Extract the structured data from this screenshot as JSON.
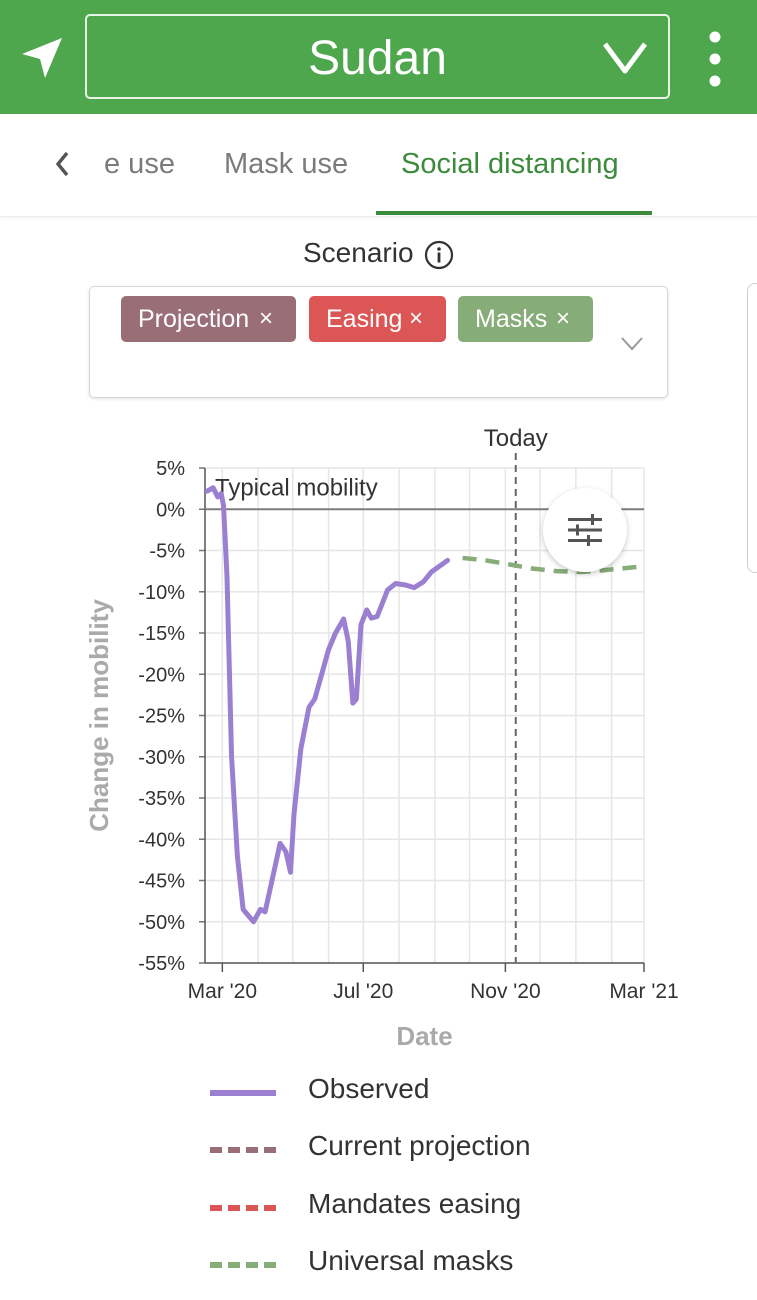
{
  "header": {
    "country": "Sudan",
    "nav_icon": "navigation-arrow-icon",
    "dropdown_icon": "chevron-down-icon",
    "menu_icon": "more-vertical-icon",
    "background": "#4ea64d"
  },
  "tabs": {
    "items": [
      {
        "label": "e use"
      },
      {
        "label": "Mask use"
      },
      {
        "label": "Social distancing",
        "active": true
      }
    ],
    "active_color": "#3c8a3c"
  },
  "scenario": {
    "label": "Scenario",
    "chips": [
      {
        "label": "Projection",
        "remove": "×",
        "color": "#9a6e77"
      },
      {
        "label": "Easing",
        "remove": "×",
        "color": "#dc5656"
      },
      {
        "label": "Masks",
        "remove": "×",
        "color": "#86ac78"
      }
    ]
  },
  "chart_data": {
    "type": "line",
    "xlabel": "Date",
    "ylabel": "Change in mobility",
    "x_ticks": [
      "Mar '20",
      "Jul '20",
      "Nov '20",
      "Mar '21"
    ],
    "x_range": [
      "2020-02-15",
      "2021-03-01"
    ],
    "y_ticks": [
      "5%",
      "0%",
      "-5%",
      "-10%",
      "-15%",
      "-20%",
      "-25%",
      "-30%",
      "-35%",
      "-40%",
      "-45%",
      "-50%",
      "-55%"
    ],
    "ylim": [
      -55,
      5
    ],
    "grid": true,
    "reference_line": {
      "y": 0,
      "label": "Typical mobility"
    },
    "today": {
      "date": "2020-11-10",
      "label": "Today"
    },
    "series": [
      {
        "name": "Observed",
        "color": "#9b80d2",
        "style": "solid",
        "points": [
          [
            "2020-02-17",
            2.2
          ],
          [
            "2020-02-22",
            2.6
          ],
          [
            "2020-02-26",
            1.5
          ],
          [
            "2020-02-29",
            1.9
          ],
          [
            "2020-03-02",
            0.5
          ],
          [
            "2020-03-05",
            -8
          ],
          [
            "2020-03-09",
            -30
          ],
          [
            "2020-03-14",
            -42
          ],
          [
            "2020-03-19",
            -48.5
          ],
          [
            "2020-03-25",
            -49.5
          ],
          [
            "2020-03-28",
            -50
          ],
          [
            "2020-04-03",
            -48.5
          ],
          [
            "2020-04-07",
            -48.8
          ],
          [
            "2020-04-13",
            -45
          ],
          [
            "2020-04-20",
            -40.5
          ],
          [
            "2020-04-25",
            -41.5
          ],
          [
            "2020-04-29",
            -44
          ],
          [
            "2020-05-02",
            -37
          ],
          [
            "2020-05-08",
            -29
          ],
          [
            "2020-05-15",
            -24
          ],
          [
            "2020-05-20",
            -23
          ],
          [
            "2020-05-25",
            -20.5
          ],
          [
            "2020-06-01",
            -17
          ],
          [
            "2020-06-07",
            -15
          ],
          [
            "2020-06-14",
            -13.3
          ],
          [
            "2020-06-18",
            -16
          ],
          [
            "2020-06-22",
            -23.5
          ],
          [
            "2020-06-25",
            -23
          ],
          [
            "2020-06-29",
            -14
          ],
          [
            "2020-07-04",
            -12.2
          ],
          [
            "2020-07-08",
            -13.2
          ],
          [
            "2020-07-13",
            -13
          ],
          [
            "2020-07-22",
            -9.8
          ],
          [
            "2020-07-29",
            -9
          ],
          [
            "2020-08-07",
            -9.2
          ],
          [
            "2020-08-14",
            -9.5
          ],
          [
            "2020-08-22",
            -8.8
          ],
          [
            "2020-08-29",
            -7.6
          ],
          [
            "2020-09-04",
            -7
          ],
          [
            "2020-09-12",
            -6.2
          ]
        ]
      },
      {
        "name": "Current projection",
        "color": "#9a6e77",
        "style": "dashed",
        "points": []
      },
      {
        "name": "Mandates easing",
        "color": "#dc5656",
        "style": "dashed",
        "points": []
      },
      {
        "name": "Universal masks",
        "color": "#86ac78",
        "style": "dashed",
        "points": [
          [
            "2020-09-25",
            -5.9
          ],
          [
            "2020-10-15",
            -6.2
          ],
          [
            "2020-11-05",
            -6.7
          ],
          [
            "2020-11-25",
            -7.2
          ],
          [
            "2020-12-15",
            -7.5
          ],
          [
            "2021-01-05",
            -7.6
          ],
          [
            "2021-01-25",
            -7.4
          ],
          [
            "2021-02-15",
            -7.1
          ],
          [
            "2021-03-01",
            -6.9
          ]
        ]
      }
    ]
  },
  "controls": {
    "settings_icon": "sliders-icon"
  }
}
